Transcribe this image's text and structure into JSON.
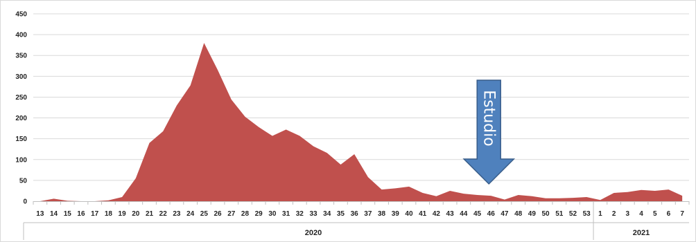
{
  "chart_data": {
    "type": "area",
    "title": "",
    "xlabel": "",
    "ylabel": "",
    "ylim": [
      0,
      450
    ],
    "yticks": [
      0,
      50,
      100,
      150,
      200,
      250,
      300,
      350,
      400,
      450
    ],
    "grid": true,
    "legend": "none",
    "categories": [
      "13",
      "14",
      "15",
      "16",
      "17",
      "18",
      "19",
      "20",
      "21",
      "22",
      "23",
      "24",
      "25",
      "26",
      "27",
      "28",
      "29",
      "30",
      "31",
      "32",
      "33",
      "34",
      "35",
      "36",
      "37",
      "38",
      "39",
      "40",
      "41",
      "42",
      "43",
      "44",
      "45",
      "46",
      "47",
      "48",
      "49",
      "50",
      "51",
      "52",
      "53",
      "1",
      "2",
      "3",
      "4",
      "5",
      "6",
      "7"
    ],
    "series": [
      {
        "values": [
          0,
          6,
          1,
          0,
          0,
          2,
          10,
          55,
          140,
          168,
          230,
          278,
          380,
          315,
          244,
          203,
          178,
          157,
          172,
          157,
          132,
          116,
          88,
          113,
          58,
          28,
          31,
          35,
          20,
          12,
          25,
          18,
          15,
          13,
          4,
          15,
          12,
          7,
          7,
          8,
          10,
          3,
          20,
          22,
          27,
          25,
          28,
          13
        ]
      }
    ],
    "year_groups": [
      {
        "label": "2020",
        "count": 41
      },
      {
        "label": "2021",
        "count": 7
      }
    ],
    "annotation": {
      "label": "Estudio",
      "at_category": "46",
      "shape": "down-arrow"
    },
    "colors": {
      "area": "#c0504d",
      "grid": "#d9d9d9",
      "axis": "#bfbfbf",
      "arrow_fill": "#4f81bd",
      "arrow_stroke": "#385d8a"
    }
  }
}
